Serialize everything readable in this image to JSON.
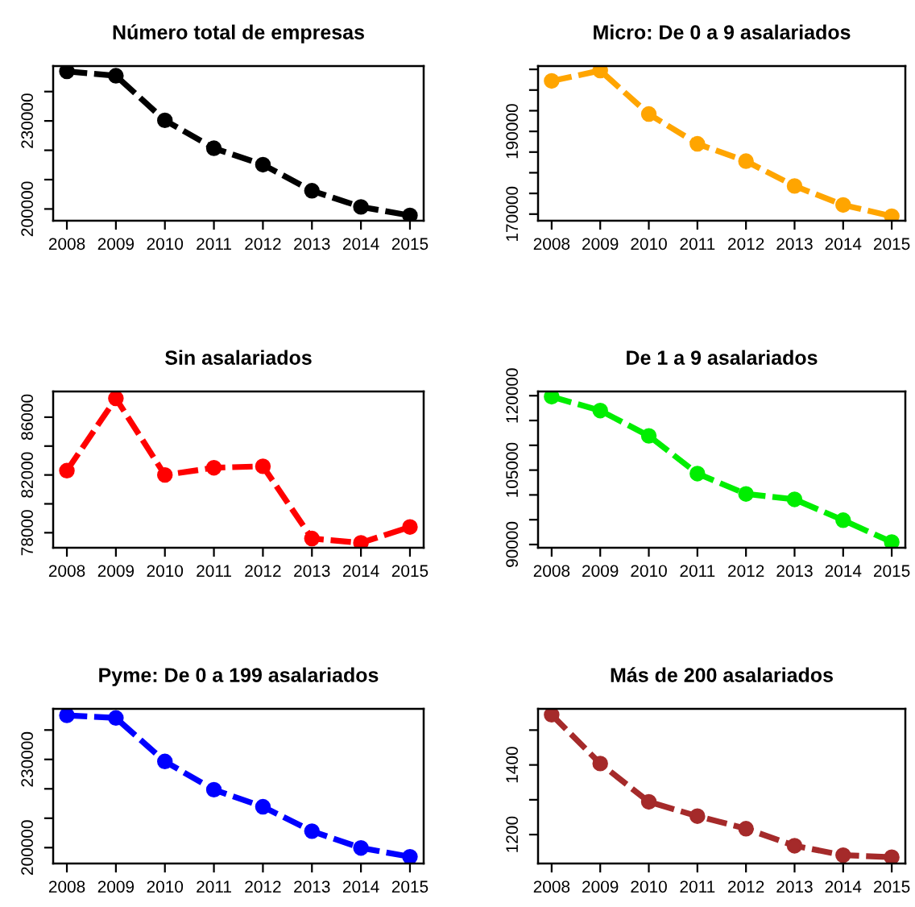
{
  "chart_data": [
    {
      "type": "line",
      "title": "Número total de empresas",
      "x": [
        2008,
        2009,
        2010,
        2011,
        2012,
        2013,
        2014,
        2015
      ],
      "series": [
        {
          "color": "#000000",
          "values": [
            246900,
            245400,
            230200,
            220700,
            215100,
            206200,
            200700,
            197800
          ]
        }
      ],
      "xlim": [
        2007.72,
        2015.28
      ],
      "xticks": [
        2008,
        2009,
        2010,
        2011,
        2012,
        2013,
        2014,
        2015
      ],
      "ylim": [
        196000,
        248700
      ],
      "yticks": [
        200000,
        {
          "value": 210000,
          "label": null
        },
        {
          "value": 220000,
          "label": null
        },
        230000,
        {
          "value": 240000,
          "label": null
        }
      ],
      "marker": "circle",
      "line_style": "dashed",
      "grid": false,
      "legend": false
    },
    {
      "type": "line",
      "title": "Micro: De 0 a 9 asalariados",
      "x": [
        2008,
        2009,
        2010,
        2011,
        2012,
        2013,
        2014,
        2015
      ],
      "series": [
        {
          "color": "#ffa500",
          "values": [
            202200,
            204700,
            194200,
            187000,
            182800,
            176800,
            172200,
            169500
          ]
        }
      ],
      "xlim": [
        2007.72,
        2015.28
      ],
      "xticks": [
        2008,
        2009,
        2010,
        2011,
        2012,
        2013,
        2014,
        2015
      ],
      "ylim": [
        168400,
        205800
      ],
      "yticks": [
        170000,
        {
          "value": 175000,
          "label": null
        },
        {
          "value": 180000,
          "label": null
        },
        {
          "value": 185000,
          "label": null
        },
        190000,
        {
          "value": 195000,
          "label": null
        },
        {
          "value": 200000,
          "label": null
        },
        {
          "value": 205000,
          "label": null
        }
      ],
      "marker": "circle",
      "line_style": "dashed",
      "grid": false,
      "legend": false
    },
    {
      "type": "line",
      "title": "Sin asalariados",
      "x": [
        2008,
        2009,
        2010,
        2011,
        2012,
        2013,
        2014,
        2015
      ],
      "series": [
        {
          "color": "#ff0000",
          "values": [
            82300,
            87300,
            82000,
            82500,
            82600,
            77600,
            77300,
            78400
          ]
        }
      ],
      "xlim": [
        2007.72,
        2015.28
      ],
      "xticks": [
        2008,
        2009,
        2010,
        2011,
        2012,
        2013,
        2014,
        2015
      ],
      "ylim": [
        76960,
        87780
      ],
      "yticks": [
        78000,
        {
          "value": 80000,
          "label": null
        },
        82000,
        {
          "value": 84000,
          "label": null
        },
        86000
      ],
      "marker": "circle",
      "line_style": "dashed",
      "grid": false,
      "legend": false
    },
    {
      "type": "line",
      "title": "De 1 a 9 asalariados",
      "x": [
        2008,
        2009,
        2010,
        2011,
        2012,
        2013,
        2014,
        2015
      ],
      "series": [
        {
          "color": "#00ee00",
          "values": [
            119800,
            117000,
            111900,
            104300,
            100200,
            99100,
            94900,
            90500
          ]
        }
      ],
      "xlim": [
        2007.72,
        2015.28
      ],
      "xticks": [
        2008,
        2009,
        2010,
        2011,
        2012,
        2013,
        2014,
        2015
      ],
      "ylim": [
        89350,
        120850
      ],
      "yticks": [
        90000,
        {
          "value": 95000,
          "label": null
        },
        {
          "value": 100000,
          "label": null
        },
        105000,
        {
          "value": 110000,
          "label": null
        },
        {
          "value": 115000,
          "label": null
        },
        120000
      ],
      "marker": "circle",
      "line_style": "dashed",
      "grid": false,
      "legend": false
    },
    {
      "type": "line",
      "title": "Pyme: De 0 a 199 asalariados",
      "x": [
        2008,
        2009,
        2010,
        2011,
        2012,
        2013,
        2014,
        2015
      ],
      "series": [
        {
          "color": "#0000ff",
          "values": [
            245000,
            244100,
            229300,
            219700,
            213900,
            205600,
            199900,
            196900
          ]
        }
      ],
      "xlim": [
        2007.72,
        2015.28
      ],
      "xticks": [
        2008,
        2009,
        2010,
        2011,
        2012,
        2013,
        2014,
        2015
      ],
      "ylim": [
        194600,
        247200
      ],
      "yticks": [
        200000,
        {
          "value": 210000,
          "label": null
        },
        {
          "value": 220000,
          "label": null
        },
        230000,
        {
          "value": 240000,
          "label": null
        }
      ],
      "marker": "circle",
      "line_style": "dashed",
      "grid": false,
      "legend": false
    },
    {
      "type": "line",
      "title": "Más de 200 asalariados",
      "x": [
        2008,
        2009,
        2010,
        2011,
        2012,
        2013,
        2014,
        2015
      ],
      "series": [
        {
          "color": "#a52a2a",
          "values": [
            1544,
            1404,
            1294,
            1253,
            1217,
            1168,
            1141,
            1135
          ]
        }
      ],
      "xlim": [
        2007.72,
        2015.28
      ],
      "xticks": [
        2008,
        2009,
        2010,
        2011,
        2012,
        2013,
        2014,
        2015
      ],
      "ylim": [
        1117,
        1561
      ],
      "yticks": [
        1200,
        {
          "value": 1300,
          "label": null
        },
        1400,
        {
          "value": 1500,
          "label": null
        }
      ],
      "marker": "circle",
      "line_style": "dashed",
      "grid": false,
      "legend": false
    }
  ]
}
